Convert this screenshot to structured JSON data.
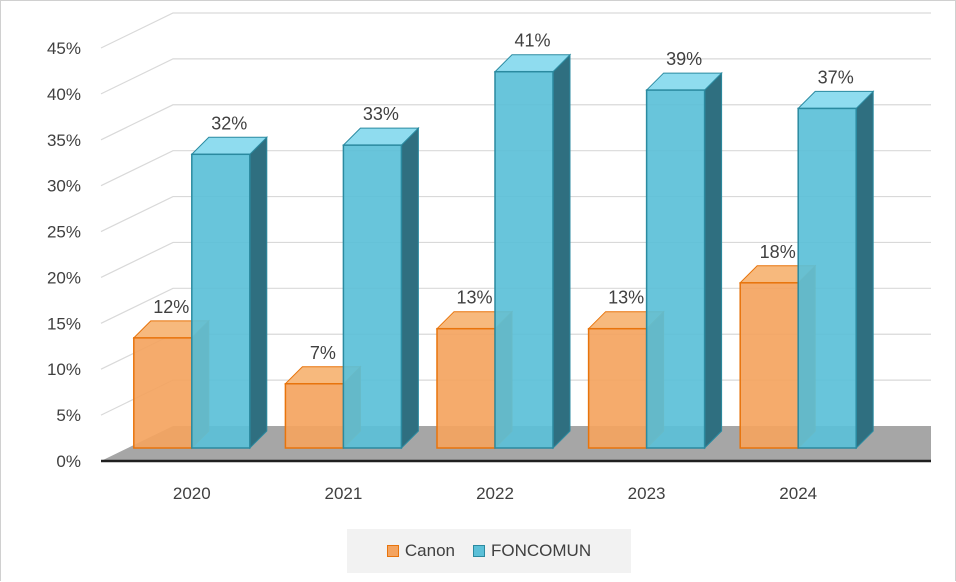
{
  "chart_data": {
    "type": "bar",
    "categories": [
      "2020",
      "2021",
      "2022",
      "2023",
      "2024"
    ],
    "series": [
      {
        "name": "Canon",
        "values": [
          12,
          7,
          13,
          13,
          18
        ],
        "labels": [
          "12%",
          "7%",
          "13%",
          "13%",
          "18%"
        ],
        "color": "#f4a460",
        "stroke": "#e8740c"
      },
      {
        "name": "FONCOMUN",
        "values": [
          32,
          33,
          41,
          39,
          37
        ],
        "labels": [
          "32%",
          "33%",
          "41%",
          "39%",
          "37%"
        ],
        "color": "#5bc0d8",
        "stroke": "#2b8aa0"
      }
    ],
    "y_ticks": [
      "0%",
      "5%",
      "10%",
      "15%",
      "20%",
      "25%",
      "30%",
      "35%",
      "40%",
      "45%"
    ],
    "ylim": [
      0,
      45
    ],
    "grid": true,
    "legend": "bottom",
    "floor_color": "#a6a6a6"
  }
}
